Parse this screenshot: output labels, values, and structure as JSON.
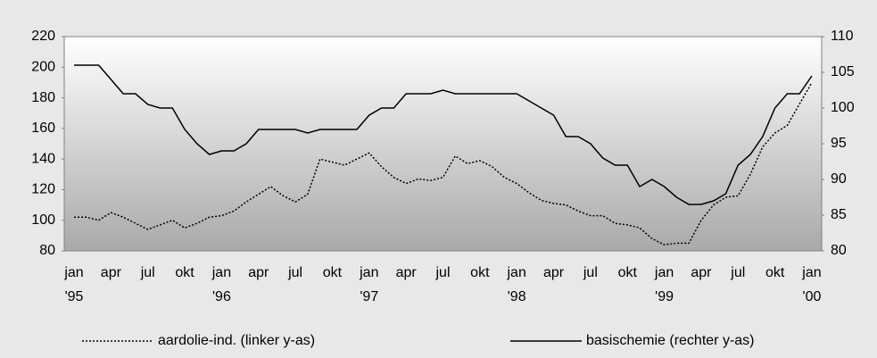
{
  "chart_data": {
    "type": "line",
    "categories": [
      "jan",
      null,
      null,
      "apr",
      null,
      null,
      "jul",
      null,
      null,
      "okt",
      null,
      null,
      "jan",
      null,
      null,
      "apr",
      null,
      null,
      "jul",
      null,
      null,
      "okt",
      null,
      null,
      "jan",
      null,
      null,
      "apr",
      null,
      null,
      "jul",
      null,
      null,
      "okt",
      null,
      null,
      "jan",
      null,
      null,
      "apr",
      null,
      null,
      "jul",
      null,
      null,
      "okt",
      null,
      null,
      "jan",
      null,
      null,
      "apr",
      null,
      null,
      "jul",
      null,
      null,
      "okt",
      null,
      null,
      "jan"
    ],
    "year_labels": [
      "'95",
      null,
      null,
      null,
      null,
      null,
      null,
      null,
      null,
      null,
      null,
      null,
      "'96",
      null,
      null,
      null,
      null,
      null,
      null,
      null,
      null,
      null,
      null,
      null,
      "'97",
      null,
      null,
      null,
      null,
      null,
      null,
      null,
      null,
      null,
      null,
      null,
      "'98",
      null,
      null,
      null,
      null,
      null,
      null,
      null,
      null,
      null,
      null,
      null,
      "'99",
      null,
      null,
      null,
      null,
      null,
      null,
      null,
      null,
      null,
      null,
      null,
      "'00"
    ],
    "series": [
      {
        "name": "aardolie-ind. (linker y-as)",
        "color": "#000000",
        "dash": "dotted",
        "values": [
          102,
          102,
          100,
          105,
          102,
          98,
          94,
          97,
          100,
          95,
          98,
          102,
          103,
          106,
          112,
          117,
          122,
          116,
          112,
          117,
          140,
          138,
          136,
          140,
          144,
          135,
          128,
          124,
          127,
          126,
          128,
          142,
          137,
          139,
          135,
          128,
          124,
          118,
          113,
          111,
          110,
          106,
          103,
          103,
          98,
          97,
          95,
          88,
          84,
          85,
          85,
          100,
          110,
          115,
          116,
          130,
          148,
          157,
          162,
          176,
          190
        ]
      },
      {
        "name": "basischemie (rechter y-as)",
        "color": "#000000",
        "dash": "solid",
        "axis": "y2",
        "values": [
          106,
          106,
          106,
          104,
          102,
          102,
          100.5,
          100,
          100,
          97,
          95,
          93.5,
          94,
          94,
          95,
          97,
          97,
          97,
          97,
          96.5,
          97,
          97,
          97,
          97,
          99,
          100,
          100,
          102,
          102,
          102,
          102.5,
          102,
          102,
          102,
          102,
          102,
          102,
          101,
          100,
          99,
          96,
          96,
          95,
          93,
          92,
          92,
          89,
          90,
          89,
          87.5,
          86.5,
          86.5,
          87,
          88,
          92,
          93.5,
          96,
          100,
          102,
          102,
          104.5
        ]
      }
    ],
    "ylim": [
      80,
      220
    ],
    "yticks": [
      80,
      100,
      120,
      140,
      160,
      180,
      200,
      220
    ],
    "y2lim": [
      80,
      110
    ],
    "y2ticks": [
      80,
      85,
      90,
      95,
      100,
      105,
      110
    ],
    "legend": "bottom"
  }
}
